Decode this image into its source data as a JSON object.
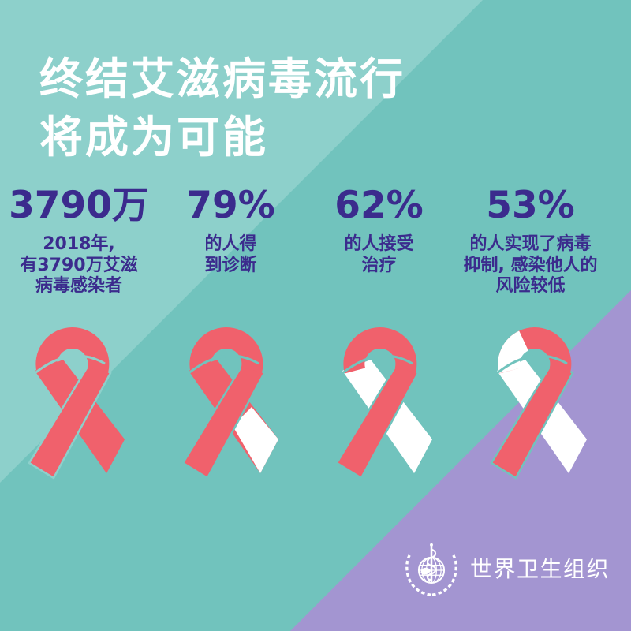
{
  "page": {
    "kind": "infographic-poster",
    "language": "zh"
  },
  "colors": {
    "teal": "#71C3BD",
    "light_teal": "#8DD0CB",
    "purple": "#A395D1",
    "ribbon_red": "#F0616C",
    "white": "#FFFFFF",
    "text_indigo": "#3B2B8D"
  },
  "title": {
    "line1": "终结艾滋病毒流行",
    "line2": "将成为可能"
  },
  "stats": [
    {
      "value": "3790万",
      "label_lines": [
        "2018年,",
        "有3790万艾滋",
        "病毒感染者"
      ]
    },
    {
      "value": "79%",
      "label_lines": [
        "的人得",
        "到诊断"
      ]
    },
    {
      "value": "62%",
      "label_lines": [
        "的人接受",
        "治疗"
      ]
    },
    {
      "value": "53%",
      "label_lines": [
        "的人实现了病毒",
        "抑制, 感染他人的",
        "风险较低"
      ]
    }
  ],
  "ribbons": [
    {
      "name": "ribbon-1-fully-red",
      "segments": {
        "top_arc": "ribbon_red",
        "top_arc_left": "",
        "back_upper": "ribbon_red",
        "back_tail": "ribbon_red",
        "front": "ribbon_red"
      },
      "gap_on": "light_teal"
    },
    {
      "name": "ribbon-2-tail-white",
      "segments": {
        "top_arc": "ribbon_red",
        "top_arc_left": "",
        "back_upper": "ribbon_red",
        "back_tail": "white",
        "front": "ribbon_red"
      },
      "gap_on": "teal"
    },
    {
      "name": "ribbon-3-back-white",
      "segments": {
        "top_arc": "ribbon_red",
        "top_arc_left": "",
        "back_upper": "white",
        "back_tail": "white",
        "front": "ribbon_red"
      },
      "gap_on": "teal"
    },
    {
      "name": "ribbon-4-back-and-arc-white",
      "segments": {
        "top_arc": "ribbon_red",
        "top_arc_left": "white",
        "back_upper": "white",
        "back_tail": "white",
        "front": "ribbon_red"
      },
      "gap_on": "teal"
    }
  ],
  "footer": {
    "org_name": "世界卫生组织",
    "logo": "who-emblem"
  }
}
